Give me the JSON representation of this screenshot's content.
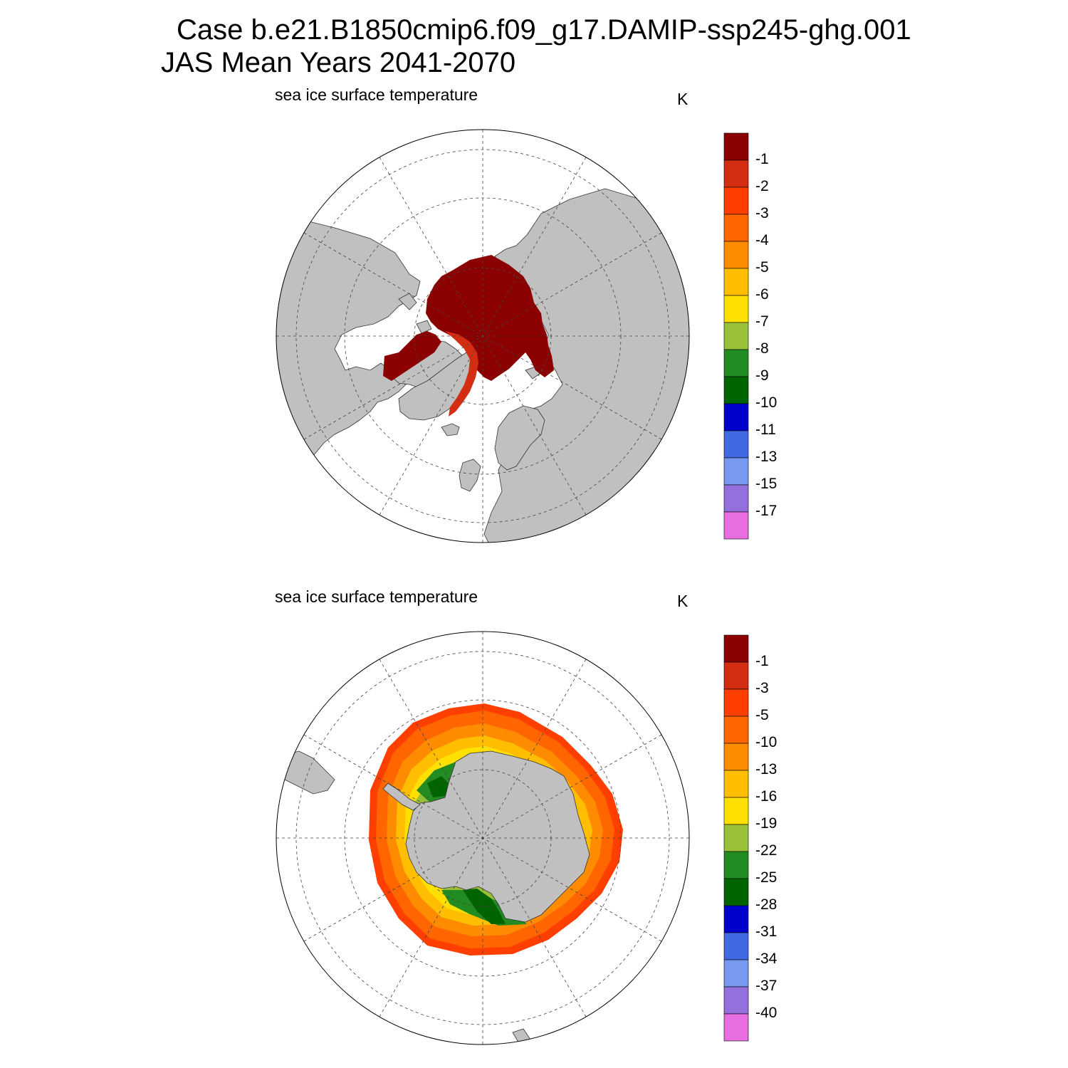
{
  "title": {
    "line1": "Case b.e21.B1850cmip6.f09_g17.DAMIP-ssp245-ghg.001",
    "line2": "JAS Mean   Years 2041-2070"
  },
  "panels": [
    {
      "id": "north",
      "hemisphere": "Arctic (north polar stereographic)",
      "variable": "sea ice surface temperature",
      "units": "K",
      "colorbar": {
        "colors": [
          "#8b0000",
          "#d42e12",
          "#ff3f00",
          "#ff6600",
          "#ff8c00",
          "#ffbf00",
          "#ffe000",
          "#9ac03a",
          "#228b22",
          "#006400",
          "#0000cd",
          "#4169e1",
          "#7799f0",
          "#9370db",
          "#e86de0"
        ],
        "labels": [
          "-1",
          "-2",
          "-3",
          "-4",
          "-5",
          "-6",
          "-7",
          "-8",
          "-9",
          "-10",
          "-11",
          "-13",
          "-15",
          "-17"
        ]
      }
    },
    {
      "id": "south",
      "hemisphere": "Antarctic (south polar stereographic)",
      "variable": "sea ice surface temperature",
      "units": "K",
      "colorbar": {
        "colors": [
          "#8b0000",
          "#d42e12",
          "#ff3f00",
          "#ff6600",
          "#ff8c00",
          "#ffbf00",
          "#ffe000",
          "#9ac03a",
          "#228b22",
          "#006400",
          "#0000cd",
          "#4169e1",
          "#7799f0",
          "#9370db",
          "#e86de0"
        ],
        "labels": [
          "-1",
          "-3",
          "-5",
          "-10",
          "-13",
          "-16",
          "-19",
          "-22",
          "-25",
          "-28",
          "-31",
          "-34",
          "-37",
          "-40"
        ]
      }
    }
  ],
  "colors": {
    "land": "#c0c0c0",
    "ocean": "#ffffff",
    "grid": "#444444"
  }
}
